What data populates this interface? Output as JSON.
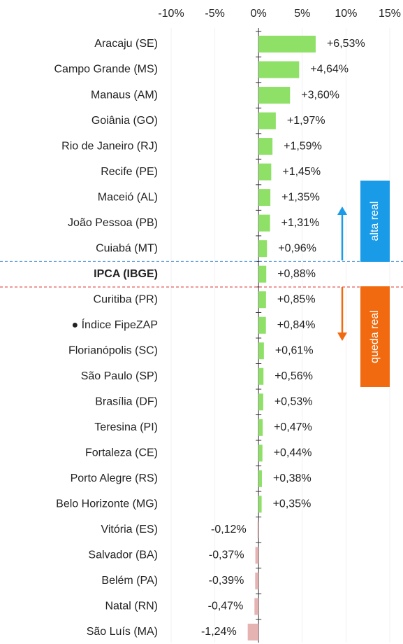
{
  "chart_data": {
    "type": "hbar",
    "categories": [
      "Aracaju (SE)",
      "Campo Grande (MS)",
      "Manaus (AM)",
      "Goiânia (GO)",
      "Rio de Janeiro (RJ)",
      "Recife (PE)",
      "Maceió (AL)",
      "João Pessoa (PB)",
      "Cuiabá (MT)",
      "IPCA (IBGE)",
      "Curitiba (PR)",
      "● Índice FipeZAP",
      "Florianópolis (SC)",
      "São Paulo (SP)",
      "Brasília (DF)",
      "Teresina (PI)",
      "Fortaleza (CE)",
      "Porto Alegre (RS)",
      "Belo Horizonte (MG)",
      "Vitória (ES)",
      "Salvador (BA)",
      "Belém (PA)",
      "Natal (RN)",
      "São Luís (MA)"
    ],
    "values": [
      6.53,
      4.64,
      3.6,
      1.97,
      1.59,
      1.45,
      1.35,
      1.31,
      0.96,
      0.88,
      0.85,
      0.84,
      0.61,
      0.56,
      0.53,
      0.47,
      0.44,
      0.38,
      0.35,
      -0.12,
      -0.37,
      -0.39,
      -0.47,
      -1.24
    ],
    "value_labels": [
      "+6,53%",
      "+4,64%",
      "+3,60%",
      "+1,97%",
      "+1,59%",
      "+1,45%",
      "+1,35%",
      "+1,31%",
      "+0,96%",
      "+0,88%",
      "+0,85%",
      "+0,84%",
      "+0,61%",
      "+0,56%",
      "+0,53%",
      "+0,47%",
      "+0,44%",
      "+0,38%",
      "+0,35%",
      "-0,12%",
      "-0,37%",
      "-0,39%",
      "-0,47%",
      "-1,24%"
    ],
    "positive_color": "#8ee066",
    "negative_color": "#e6b3b3",
    "bold_categories": [
      9
    ],
    "xlim": [
      -10,
      15
    ],
    "xticks": [
      {
        "value": -10,
        "label": "-10%"
      },
      {
        "value": -5,
        "label": "-5%"
      },
      {
        "value": 0,
        "label": "0%"
      },
      {
        "value": 5,
        "label": "5%"
      },
      {
        "value": 10,
        "label": "10%"
      },
      {
        "value": 15,
        "label": "15%"
      }
    ],
    "grid": true,
    "annotations": [
      {
        "text": "alta real",
        "color": "#1a9be8"
      },
      {
        "text": "queda real",
        "color": "#f26a10"
      }
    ]
  }
}
